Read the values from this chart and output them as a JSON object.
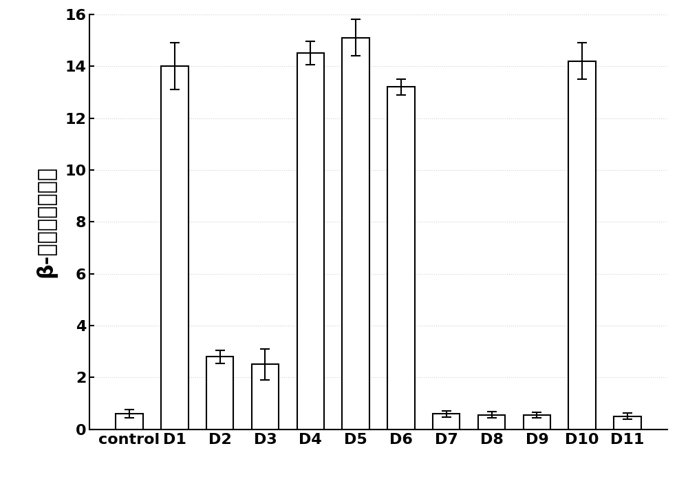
{
  "categories": [
    "control",
    "D1",
    "D2",
    "D3",
    "D4",
    "D5",
    "D6",
    "D7",
    "D8",
    "D9",
    "D10",
    "D11"
  ],
  "values": [
    0.6,
    14.0,
    2.8,
    2.5,
    14.5,
    15.1,
    13.2,
    0.6,
    0.55,
    0.55,
    14.2,
    0.5
  ],
  "errors": [
    0.15,
    0.9,
    0.25,
    0.6,
    0.45,
    0.7,
    0.3,
    0.12,
    0.12,
    0.1,
    0.7,
    0.12
  ],
  "bar_color": "#ffffff",
  "bar_edgecolor": "#000000",
  "bar_width": 0.6,
  "ylabel": "β-半乳糖苷酶活性",
  "ylim": [
    0,
    16
  ],
  "yticks": [
    0,
    2,
    4,
    6,
    8,
    10,
    12,
    14,
    16
  ],
  "background_color": "#ffffff",
  "grid_color": "#d0d0d0",
  "grid_linestyle": ":",
  "capsize": 5,
  "elinewidth": 1.5,
  "ecolor": "#000000",
  "bar_linewidth": 1.5,
  "ylabel_fontsize": 22,
  "tick_fontsize": 16,
  "figsize": [
    10.0,
    6.93
  ],
  "dpi": 100
}
